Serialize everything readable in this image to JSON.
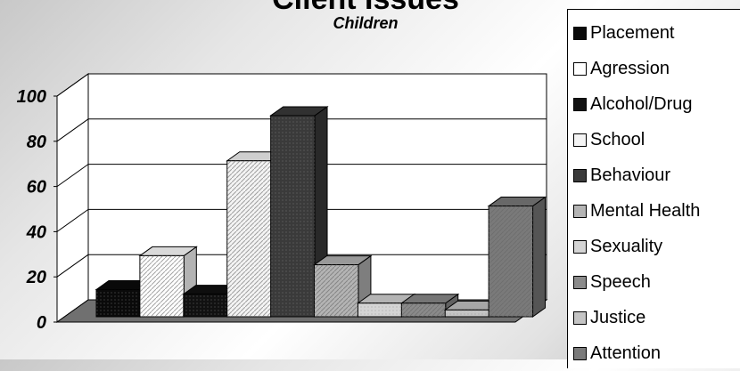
{
  "chart_data": {
    "type": "bar",
    "title": "Client Issues",
    "subtitle": "Children",
    "ylim": [
      0,
      100
    ],
    "yticks": [
      0,
      20,
      40,
      60,
      80,
      100
    ],
    "grid": true,
    "legend_position": "right",
    "style": "3d-clustered-column",
    "series": [
      {
        "name": "Placement",
        "values": [
          12
        ]
      },
      {
        "name": "Agression",
        "values": [
          27
        ]
      },
      {
        "name": "Alcohol/Drug",
        "values": [
          10
        ]
      },
      {
        "name": "School",
        "values": [
          69
        ]
      },
      {
        "name": "Behaviour",
        "values": [
          89
        ]
      },
      {
        "name": "Mental Health",
        "values": [
          23
        ]
      },
      {
        "name": "Sexuality",
        "values": [
          6
        ]
      },
      {
        "name": "Speech",
        "values": [
          6
        ]
      },
      {
        "name": "Justice",
        "values": [
          3
        ]
      },
      {
        "name": "Attention",
        "values": [
          49
        ]
      }
    ]
  },
  "colors": {
    "Placement": "#0a0a0a",
    "Agression": "#ffffff",
    "Alcohol/Drug": "#111111",
    "School": "#f4f4f4",
    "Behaviour": "#3a3a3a",
    "Mental Health": "#b4b4b4",
    "Sexuality": "#d4d4d4",
    "Speech": "#8a8a8a",
    "Justice": "#c4c4c4",
    "Attention": "#7a7a7a"
  }
}
